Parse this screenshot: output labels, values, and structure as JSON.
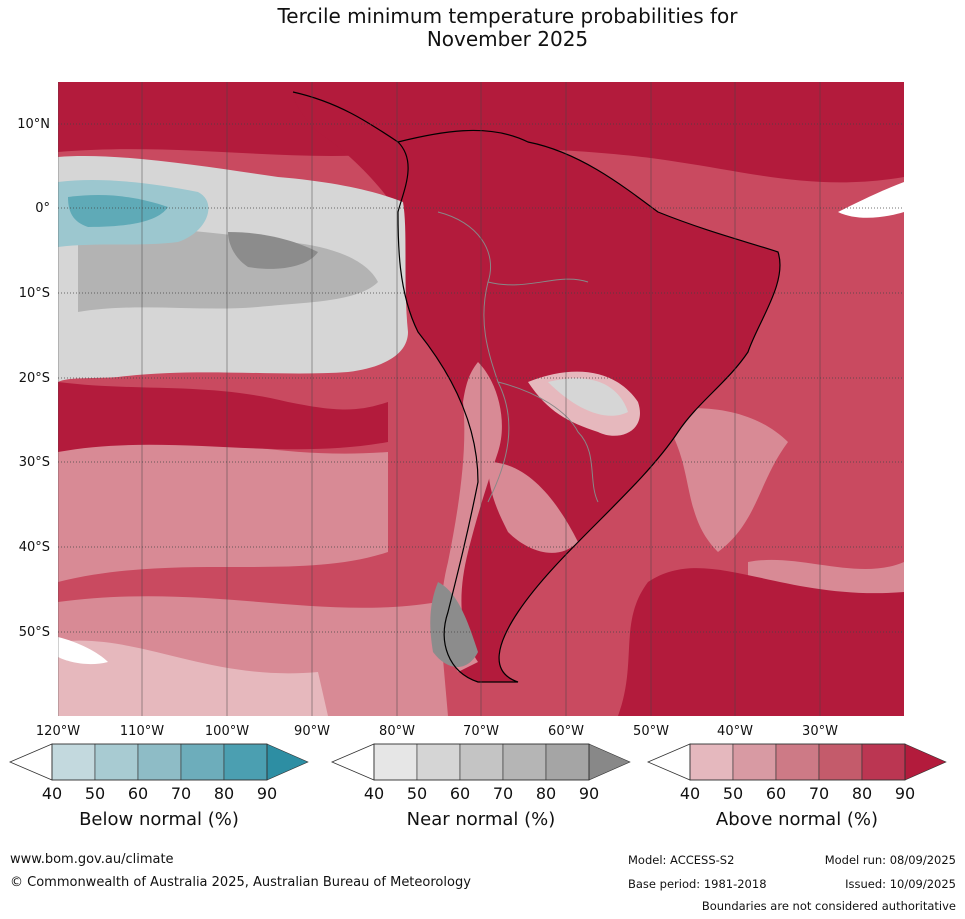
{
  "title_line1": "Tercile minimum temperature probabilities for",
  "title_line2": "November 2025",
  "map": {
    "lat_labels": [
      "10°N",
      "0°",
      "10°S",
      "20°S",
      "30°S",
      "40°S",
      "50°S"
    ],
    "lon_labels": [
      "120°W",
      "110°W",
      "100°W",
      "90°W",
      "80°W",
      "70°W",
      "60°W",
      "50°W",
      "40°W",
      "30°W"
    ],
    "colors": {
      "above_dark": "#b31b3c",
      "above_mid": "#c94a60",
      "above_light": "#d88a95",
      "above_pale": "#e6b8bd",
      "near_light": "#d6d6d6",
      "near_mid": "#b3b3b3",
      "near_dark": "#8c8c8c",
      "below_pale": "#9cc7cf",
      "below_mid": "#5faab7"
    }
  },
  "colorbars": [
    {
      "label": "Below normal (%)",
      "ticks": [
        "40",
        "50",
        "60",
        "70",
        "80",
        "90"
      ],
      "colors": [
        "#c3d9de",
        "#a8cbd2",
        "#8ebcc6",
        "#6dadbb",
        "#4b9fb1",
        "#2d8ea3"
      ]
    },
    {
      "label": "Near normal (%)",
      "ticks": [
        "40",
        "50",
        "60",
        "70",
        "80",
        "90"
      ],
      "colors": [
        "#e6e6e6",
        "#d5d5d5",
        "#c4c4c4",
        "#b5b5b5",
        "#a5a5a5",
        "#888888"
      ]
    },
    {
      "label": "Above normal (%)",
      "ticks": [
        "40",
        "50",
        "60",
        "70",
        "80",
        "90"
      ],
      "colors": [
        "#e5b8be",
        "#d89aa3",
        "#cd7a86",
        "#c45b6b",
        "#bb3652",
        "#b31b3c"
      ]
    }
  ],
  "footer": {
    "url": "www.bom.gov.au/climate",
    "copyright": "© Commonwealth of Australia 2025, Australian Bureau of Meteorology",
    "model": "Model: ACCESS-S2",
    "model_run": "Model run: 08/09/2025",
    "base_period": "Base period: 1981-2018",
    "issued": "Issued: 10/09/2025",
    "disclaimer": "Boundaries are not considered authoritative"
  }
}
